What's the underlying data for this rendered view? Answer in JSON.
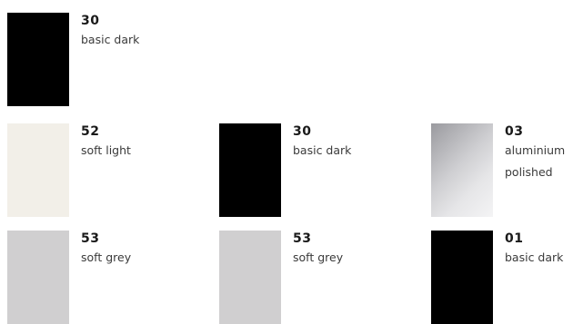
{
  "colors": {
    "basic_dark": "#000000",
    "soft_light": "#f2efe8",
    "soft_grey": "#d0cfd0",
    "aluminium_polished_from": "#9a9a9f",
    "aluminium_polished_mid": "#e6e6e8",
    "aluminium_polished_to": "#f4f4f5"
  },
  "swatches": [
    {
      "code": "30",
      "name_line1": "basic dark",
      "name_line2": ""
    },
    {
      "code": "52",
      "name_line1": "soft light",
      "name_line2": ""
    },
    {
      "code": "30",
      "name_line1": "basic dark",
      "name_line2": ""
    },
    {
      "code": "03",
      "name_line1": "aluminium",
      "name_line2": "polished"
    },
    {
      "code": "53",
      "name_line1": "soft grey",
      "name_line2": ""
    },
    {
      "code": "53",
      "name_line1": "soft grey",
      "name_line2": ""
    },
    {
      "code": "01",
      "name_line1": "basic dark",
      "name_line2": ""
    }
  ]
}
